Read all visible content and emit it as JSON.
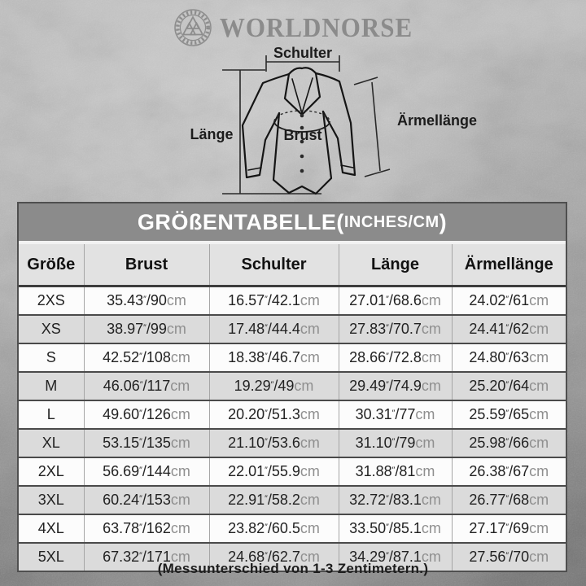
{
  "brand": {
    "name": "WORLDNORSE",
    "logo_icon": "valknut-knot-circle-emblem",
    "logo_color": "#8b8b8b"
  },
  "diagram": {
    "schulter_label": "Schulter",
    "laenge_label": "Länge",
    "brust_label": "Brust",
    "aermellaenge_label": "Ärmellänge"
  },
  "size_table": {
    "title_main": "GRÖßENTABELLE(",
    "title_unit": "INCHES/CM",
    "title_close": ")"
  },
  "chart_data": {
    "type": "table",
    "title": "GRÖßENTABELLE (INCHES/CM)",
    "columns": [
      "Größe",
      "Brust",
      "Schulter",
      "Länge",
      "Ärmellänge"
    ],
    "rows": [
      [
        "2XS",
        "35.43″/90cm",
        "16.57″/42.1cm",
        "27.01″/68.6cm",
        "24.02″/61cm"
      ],
      [
        "XS",
        "38.97″/99cm",
        "17.48″/44.4cm",
        "27.83″/70.7cm",
        "24.41″/62cm"
      ],
      [
        "S",
        "42.52″/108cm",
        "18.38″/46.7cm",
        "28.66″/72.8cm",
        "24.80″/63cm"
      ],
      [
        "M",
        "46.06″/117cm",
        "19.29″/49cm",
        "29.49″/74.9cm",
        "25.20″/64cm"
      ],
      [
        "L",
        "49.60″/126cm",
        "20.20″/51.3cm",
        "30.31″/77cm",
        "25.59″/65cm"
      ],
      [
        "XL",
        "53.15″/135cm",
        "21.10″/53.6cm",
        "31.10″/79cm",
        "25.98″/66cm"
      ],
      [
        "2XL",
        "56.69″/144cm",
        "22.01″/55.9cm",
        "31.88″/81cm",
        "26.38″/67cm"
      ],
      [
        "3XL",
        "60.24″/153cm",
        "22.91″/58.2cm",
        "32.72″/83.1cm",
        "26.77″/68cm"
      ],
      [
        "4XL",
        "63.78″/162cm",
        "23.82″/60.5cm",
        "33.50″/85.1cm",
        "27.17″/69cm"
      ],
      [
        "5XL",
        "67.32″/171cm",
        "24.68″/62.7cm",
        "34.29″/87.1cm",
        "27.56″/70cm"
      ]
    ],
    "unit_inch_mark": "″",
    "unit_cm_suffix": "cm"
  },
  "footer_note": "(Messunterschied von 1-3 Zentimetern.)",
  "colors": {
    "title_bar_bg": "#8b8b8b",
    "title_text": "#ffffff",
    "header_row_bg": "#e2e2e2",
    "row_white": "#fcfcfc",
    "row_gray": "#dbdbdb",
    "cell_text": "#222222",
    "cm_text": "#8f8f8f",
    "border_dark": "#4a4a4a",
    "border_light": "#a6a6a6",
    "diagram_line": "#1c1c1c",
    "background_gray": "#b5b5b5"
  }
}
